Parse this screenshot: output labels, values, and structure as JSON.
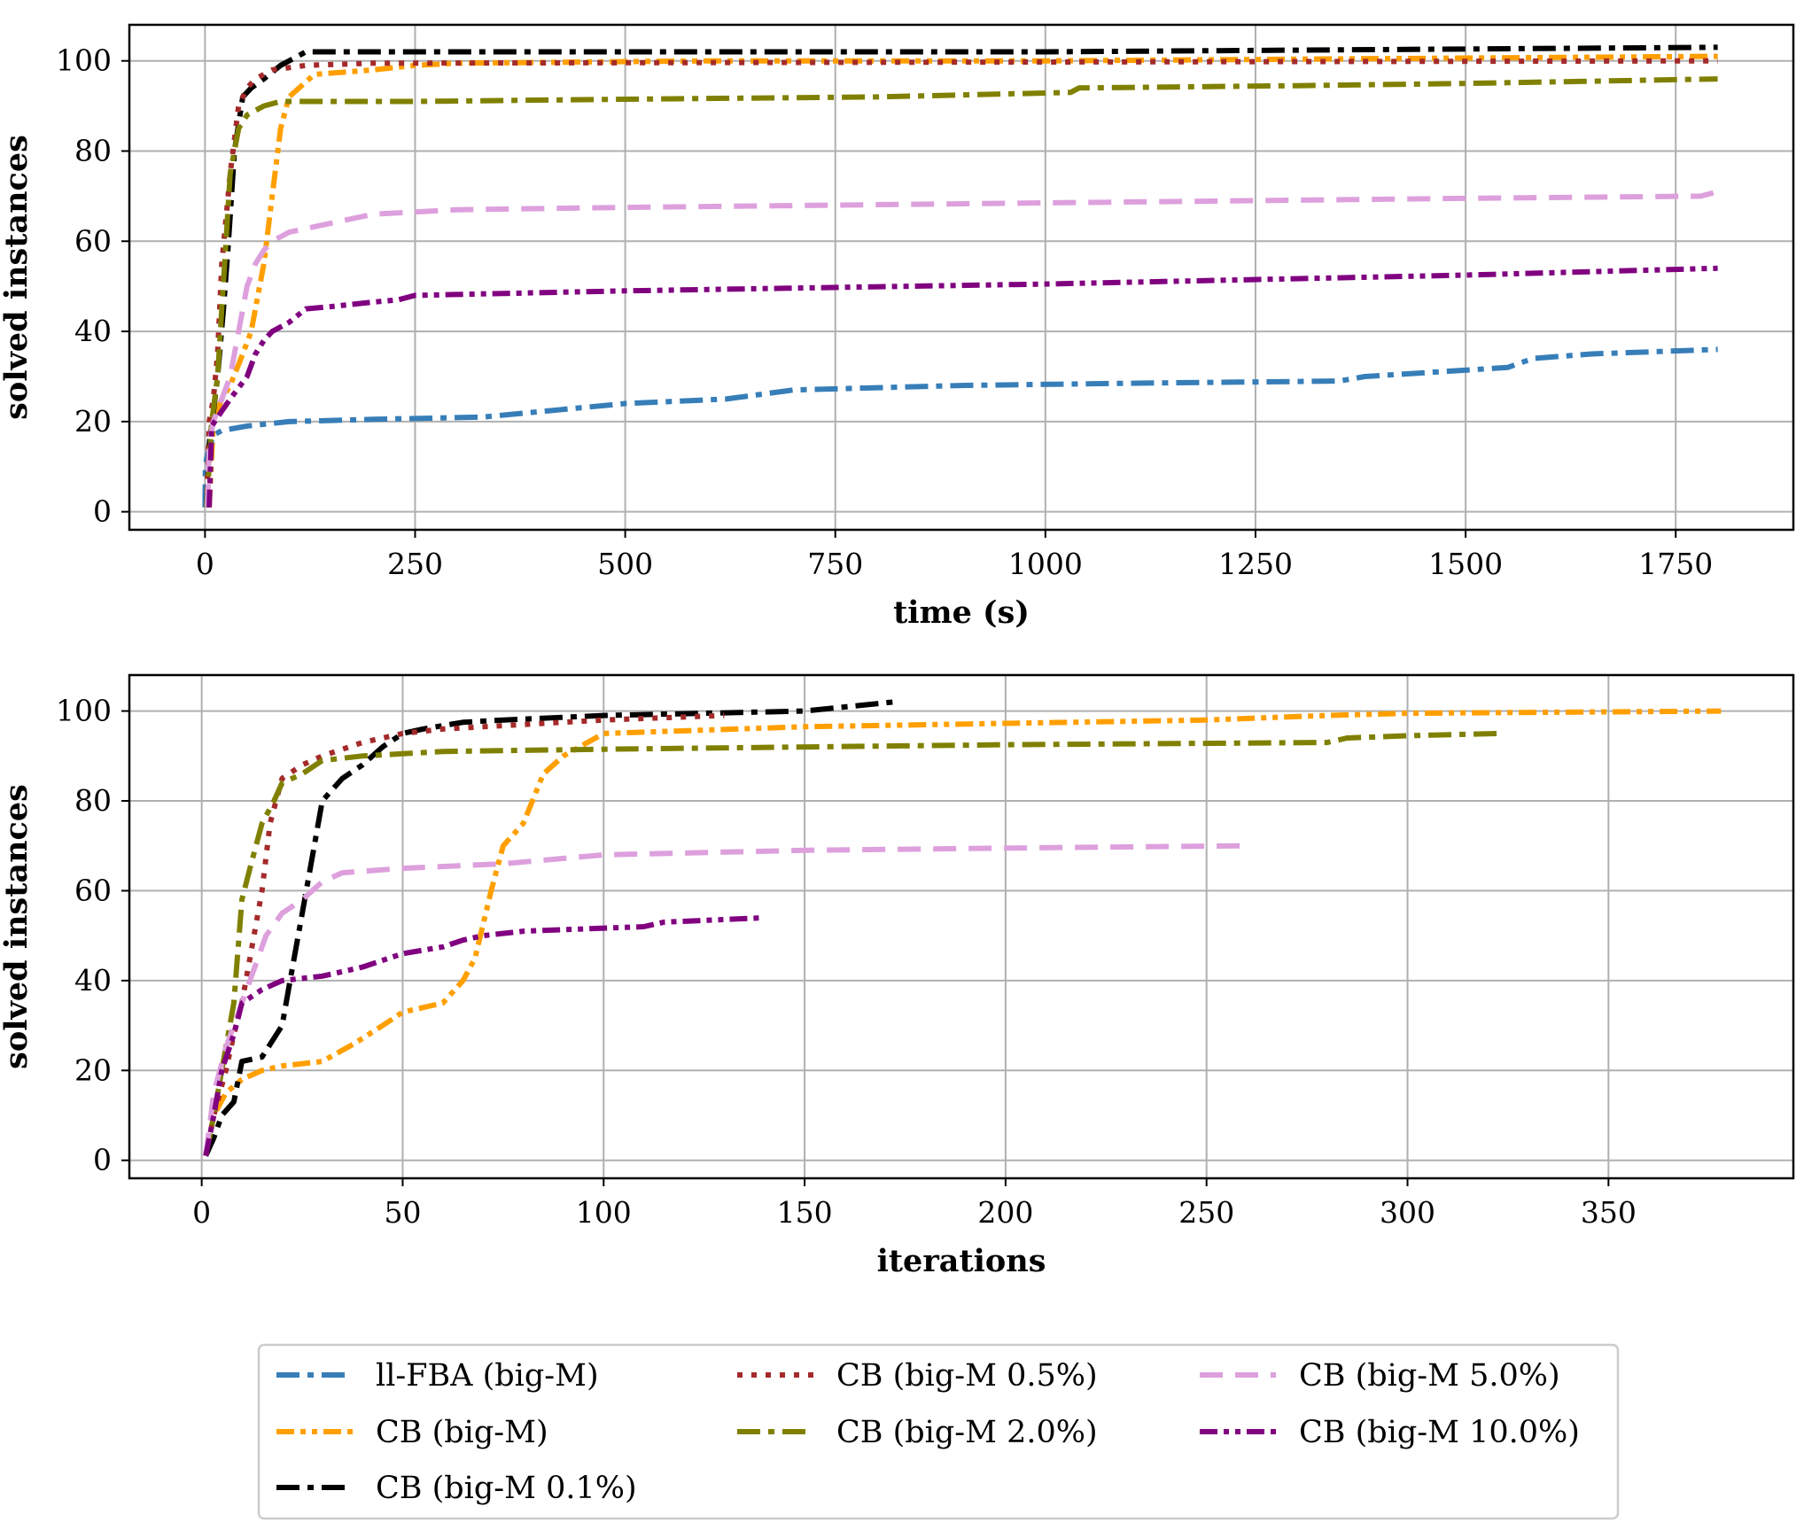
{
  "chart_data": [
    {
      "type": "line",
      "xlabel": "time (s)",
      "ylabel": "solved instances",
      "xlim": [
        -90,
        1890
      ],
      "ylim": [
        -4,
        108
      ],
      "xticks": [
        0,
        250,
        500,
        750,
        1000,
        1250,
        1500,
        1750
      ],
      "xtick_labels": [
        "0",
        "250",
        "500",
        "750",
        "1000",
        "1250",
        "1500",
        "1750"
      ],
      "yticks": [
        0,
        20,
        40,
        60,
        80,
        100
      ],
      "ytick_labels": [
        "0",
        "20",
        "40",
        "60",
        "80",
        "100"
      ],
      "grid": true,
      "series": [
        {
          "name": "ll-FBA (big-M)",
          "color": "#377eb8",
          "x": [
            0,
            0.5,
            2,
            10,
            20,
            50,
            100,
            200,
            330,
            500,
            620,
            700,
            900,
            1100,
            1350,
            1380,
            1550,
            1580,
            1650,
            1800
          ],
          "y": [
            1,
            10,
            12,
            17,
            18,
            19,
            20,
            20.5,
            21,
            24,
            25,
            27,
            28,
            28.5,
            29,
            30,
            32,
            34,
            35,
            36
          ]
        },
        {
          "name": "CB (big-M)",
          "color": "#ff9f00",
          "x": [
            5,
            10,
            20,
            30,
            45,
            55,
            70,
            80,
            90,
            100,
            130,
            200,
            250,
            300,
            600,
            1000,
            1800
          ],
          "y": [
            1,
            20,
            25,
            28,
            35,
            40,
            55,
            70,
            85,
            92,
            97,
            98,
            99,
            99.5,
            100,
            100,
            101
          ]
        },
        {
          "name": "CB (big-M 0.1%)",
          "color": "#000000",
          "x": [
            2,
            5,
            10,
            15,
            22,
            28,
            35,
            45,
            55,
            70,
            90,
            120,
            200,
            1000,
            1800
          ],
          "y": [
            1,
            15,
            22,
            30,
            45,
            60,
            80,
            92,
            94,
            96,
            99,
            102,
            102,
            102,
            103
          ]
        },
        {
          "name": "CB (big-M 0.5%)",
          "color": "#a52a2a",
          "x": [
            2,
            5,
            10,
            15,
            20,
            30,
            40,
            50,
            60,
            80,
            120,
            200,
            1800
          ],
          "y": [
            1,
            20,
            25,
            35,
            55,
            75,
            90,
            94,
            96,
            98,
            99,
            99.5,
            100
          ]
        },
        {
          "name": "CB (big-M 2.0%)",
          "color": "#808000",
          "x": [
            2,
            8,
            15,
            20,
            25,
            30,
            40,
            50,
            60,
            70,
            90,
            250,
            500,
            800,
            1030,
            1040,
            1300,
            1500,
            1800
          ],
          "y": [
            1,
            20,
            30,
            45,
            60,
            75,
            85,
            88,
            89,
            90,
            91,
            91,
            91.5,
            92,
            93,
            94,
            94.5,
            95,
            96
          ]
        },
        {
          "name": "CB (big-M 5.0%)",
          "color": "#dda0dd",
          "x": [
            3,
            5,
            10,
            20,
            30,
            40,
            50,
            60,
            70,
            80,
            100,
            150,
            200,
            300,
            500,
            1000,
            1500,
            1780,
            1800
          ],
          "y": [
            1,
            15,
            20,
            25,
            30,
            40,
            50,
            55,
            58,
            60,
            62,
            64,
            66,
            67,
            67.5,
            68.5,
            69.5,
            70,
            71
          ]
        },
        {
          "name": "CB (big-M 10.0%)",
          "color": "#800080",
          "x": [
            5,
            8,
            15,
            30,
            50,
            60,
            70,
            80,
            100,
            120,
            150,
            200,
            230,
            250,
            500,
            1000,
            1500,
            1800
          ],
          "y": [
            1,
            19,
            21,
            25,
            30,
            35,
            38,
            40,
            42,
            45,
            45.5,
            46.5,
            47,
            48,
            49,
            50.5,
            52.5,
            54
          ]
        }
      ]
    },
    {
      "type": "line",
      "xlabel": "iterations",
      "ylabel": "solved instances",
      "xlim": [
        -18,
        396
      ],
      "ylim": [
        -4,
        108
      ],
      "xticks": [
        0,
        50,
        100,
        150,
        200,
        250,
        300,
        350
      ],
      "xtick_labels": [
        "0",
        "50",
        "100",
        "150",
        "200",
        "250",
        "300",
        "350"
      ],
      "yticks": [
        0,
        20,
        40,
        60,
        80,
        100
      ],
      "ytick_labels": [
        "0",
        "20",
        "40",
        "60",
        "80",
        "100"
      ],
      "grid": true,
      "series": [
        {
          "name": "CB (big-M)",
          "color": "#ff9f00",
          "x": [
            1,
            3,
            6,
            10,
            15,
            20,
            30,
            38,
            45,
            50,
            60,
            65,
            68,
            72,
            75,
            80,
            85,
            90,
            100,
            150,
            250,
            280,
            300,
            378
          ],
          "y": [
            1,
            10,
            15,
            18,
            20,
            21,
            22,
            26,
            30,
            33,
            35,
            40,
            45,
            60,
            70,
            75,
            86,
            90,
            95,
            96.5,
            98,
            99,
            99.5,
            100
          ]
        },
        {
          "name": "CB (big-M 0.1%)",
          "color": "#000000",
          "x": [
            1,
            3,
            5,
            8,
            10,
            15,
            20,
            22,
            25,
            28,
            30,
            35,
            40,
            45,
            50,
            55,
            65,
            75,
            100,
            150,
            172
          ],
          "y": [
            1,
            5,
            10,
            13,
            22,
            23,
            30,
            40,
            55,
            70,
            80,
            85,
            88,
            92,
            95,
            96,
            97.5,
            98,
            99,
            100,
            102
          ]
        },
        {
          "name": "CB (big-M 0.5%)",
          "color": "#a52a2a",
          "x": [
            1,
            3,
            6,
            8,
            10,
            12,
            15,
            17,
            20,
            25,
            30,
            40,
            50,
            60,
            80,
            100,
            130
          ],
          "y": [
            1,
            10,
            20,
            28,
            35,
            45,
            60,
            75,
            85,
            88,
            90,
            93,
            95,
            96,
            97,
            98,
            99
          ]
        },
        {
          "name": "CB (big-M 2.0%)",
          "color": "#808000",
          "x": [
            1,
            3,
            5,
            8,
            10,
            12,
            15,
            18,
            20,
            25,
            30,
            40,
            50,
            60,
            100,
            200,
            280,
            285,
            300,
            323
          ],
          "y": [
            1,
            10,
            20,
            35,
            58,
            65,
            75,
            80,
            84,
            86,
            89,
            90,
            90.5,
            91,
            91.5,
            92.5,
            93,
            94,
            94.5,
            95
          ]
        },
        {
          "name": "CB (big-M 5.0%)",
          "color": "#dda0dd",
          "x": [
            1,
            3,
            6,
            10,
            14,
            16,
            20,
            25,
            30,
            35,
            50,
            75,
            100,
            150,
            200,
            260
          ],
          "y": [
            1,
            15,
            25,
            35,
            45,
            50,
            55,
            58,
            62,
            64,
            65,
            66,
            68,
            69,
            69.5,
            70
          ]
        },
        {
          "name": "CB (big-M 10.0%)",
          "color": "#800080",
          "x": [
            1,
            3,
            5,
            8,
            10,
            15,
            20,
            30,
            40,
            50,
            60,
            65,
            70,
            80,
            110,
            115,
            140
          ],
          "y": [
            1,
            10,
            20,
            28,
            35,
            38,
            40,
            41,
            43,
            46,
            47.5,
            49,
            50,
            51,
            52,
            53,
            54
          ]
        }
      ]
    }
  ],
  "legend": {
    "placement": "bottom-center",
    "entries": [
      {
        "label": "ll-FBA (big-M)",
        "color": "#377eb8",
        "style": "dashdot"
      },
      {
        "label": "CB (big-M)",
        "color": "#ff9f00",
        "style": "dashdotdot"
      },
      {
        "label": "CB (big-M 0.1%)",
        "color": "#000000",
        "style": "dashdot"
      },
      {
        "label": "CB (big-M 0.5%)",
        "color": "#a52a2a",
        "style": "dotted"
      },
      {
        "label": "CB (big-M 2.0%)",
        "color": "#808000",
        "style": "dashdot"
      },
      {
        "label": "CB (big-M 5.0%)",
        "color": "#dda0dd",
        "style": "dashed"
      },
      {
        "label": "CB (big-M 10.0%)",
        "color": "#800080",
        "style": "dashdotdot"
      }
    ]
  }
}
